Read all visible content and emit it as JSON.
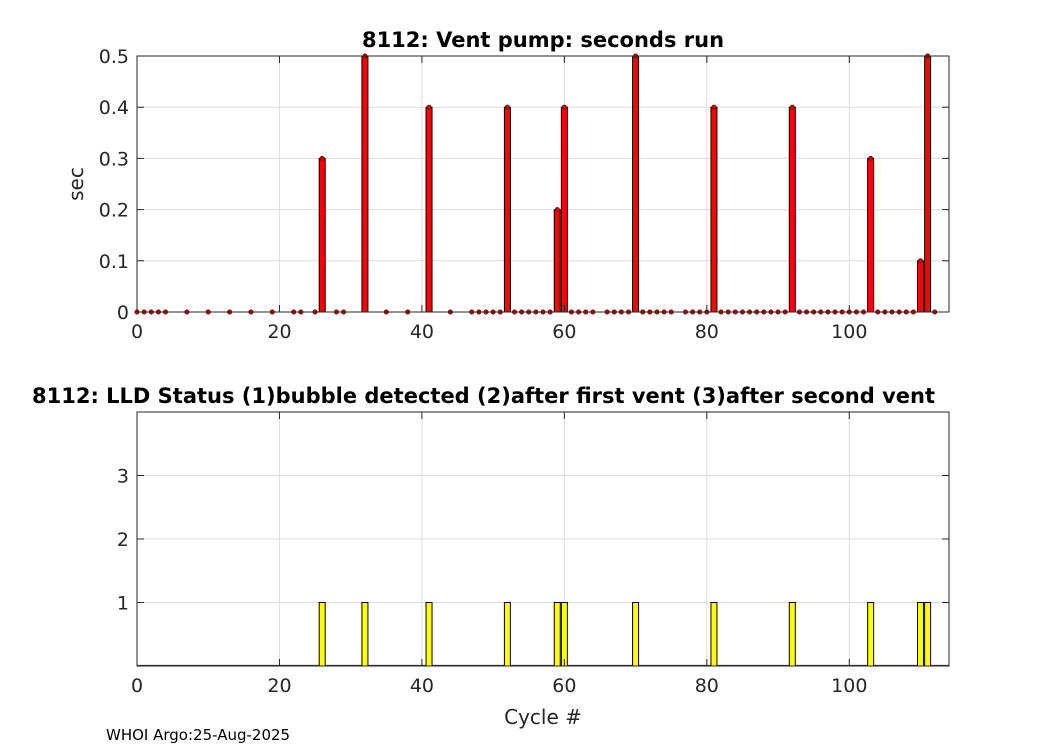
{
  "chart_data": [
    {
      "type": "bar",
      "title": "8112: Vent pump: seconds run",
      "xlabel": "",
      "ylabel": "sec",
      "xlim": [
        0,
        114
      ],
      "ylim": [
        0,
        0.5
      ],
      "xticks": [
        0,
        20,
        40,
        60,
        80,
        100
      ],
      "yticks": [
        0,
        0.1,
        0.2,
        0.3,
        0.4,
        0.5
      ],
      "grid": true,
      "bar_color": "#ff0000",
      "marker_color": "#cc0000",
      "bars": [
        {
          "x": 26,
          "y": 0.3
        },
        {
          "x": 32,
          "y": 0.5
        },
        {
          "x": 41,
          "y": 0.4
        },
        {
          "x": 52,
          "y": 0.4
        },
        {
          "x": 59,
          "y": 0.2
        },
        {
          "x": 60,
          "y": 0.4
        },
        {
          "x": 70,
          "y": 0.5
        },
        {
          "x": 81,
          "y": 0.4
        },
        {
          "x": 92,
          "y": 0.4
        },
        {
          "x": 103,
          "y": 0.3
        },
        {
          "x": 110,
          "y": 0.1
        },
        {
          "x": 111,
          "y": 0.5
        }
      ],
      "zero_points": [
        0,
        1,
        2,
        3,
        4,
        7,
        10,
        13,
        16,
        19,
        22,
        23,
        25,
        28,
        29,
        35,
        38,
        44,
        47,
        48,
        49,
        50,
        51,
        53,
        54,
        55,
        56,
        57,
        58,
        61,
        62,
        63,
        64,
        66,
        67,
        68,
        69,
        71,
        72,
        73,
        74,
        75,
        77,
        78,
        79,
        80,
        82,
        83,
        84,
        85,
        86,
        87,
        88,
        89,
        90,
        91,
        93,
        94,
        95,
        96,
        97,
        98,
        99,
        100,
        101,
        102,
        104,
        105,
        106,
        107,
        108,
        109,
        112
      ]
    },
    {
      "type": "bar",
      "title": "8112: LLD Status   (1)bubble detected   (2)after first vent  (3)after second vent",
      "xlabel": "Cycle #",
      "ylabel": "",
      "xlim": [
        0,
        114
      ],
      "ylim": [
        0,
        4
      ],
      "xticks": [
        0,
        20,
        40,
        60,
        80,
        100
      ],
      "yticks": [
        1,
        2,
        3
      ],
      "grid": true,
      "bar_color": "#ffff00",
      "bars": [
        {
          "x": 26,
          "y": 1
        },
        {
          "x": 32,
          "y": 1
        },
        {
          "x": 41,
          "y": 1
        },
        {
          "x": 52,
          "y": 1
        },
        {
          "x": 59,
          "y": 1
        },
        {
          "x": 60,
          "y": 1
        },
        {
          "x": 70,
          "y": 1
        },
        {
          "x": 81,
          "y": 1
        },
        {
          "x": 92,
          "y": 1
        },
        {
          "x": 103,
          "y": 1
        },
        {
          "x": 110,
          "y": 1
        },
        {
          "x": 111,
          "y": 1
        }
      ]
    }
  ],
  "footer": "WHOI Argo:25-Aug-2025"
}
